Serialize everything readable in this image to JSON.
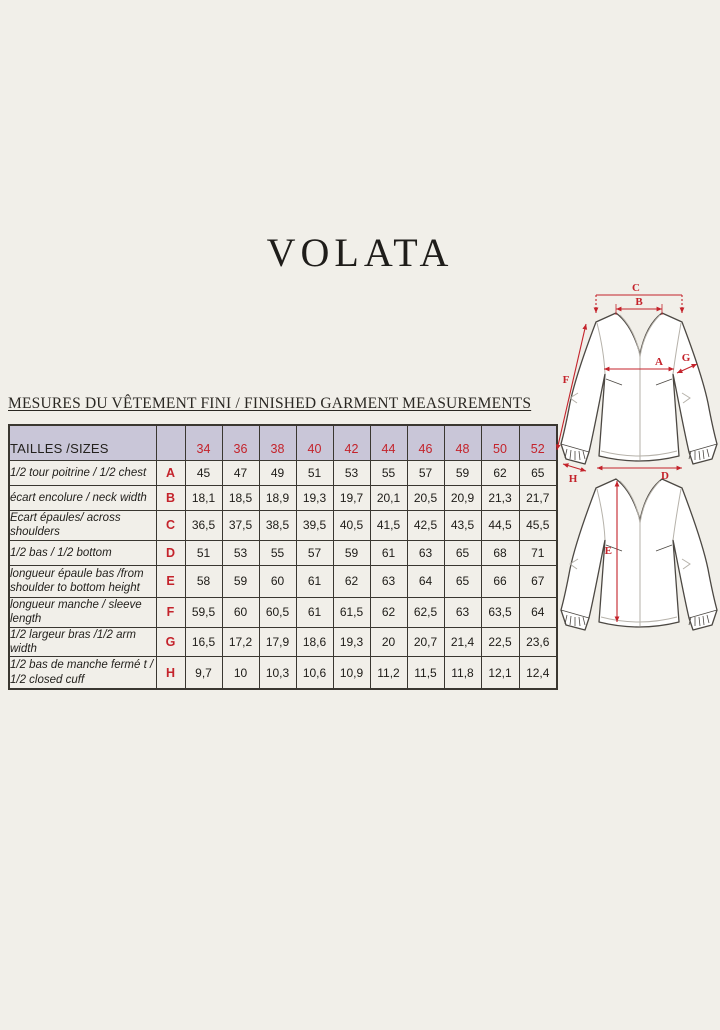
{
  "page": {
    "title": "VOLATA",
    "section_heading": "MESURES DU VÊTEMENT FINI / FINISHED GARMENT MEASUREMENTS"
  },
  "colors": {
    "background": "#f1efe9",
    "table_header_fill": "#c9c6d8",
    "accent_red": "#c4232b",
    "border": "#3a3731",
    "garment_outline": "#4c4843",
    "garment_inner_line": "#b6b2aa"
  },
  "table": {
    "corner_label": "TAILLES /SIZES",
    "sizes": [
      "34",
      "36",
      "38",
      "40",
      "42",
      "44",
      "46",
      "48",
      "50",
      "52"
    ],
    "rows": [
      {
        "label": "1/2 tour poitrine / 1/2 chest",
        "letter": "A",
        "values": [
          "45",
          "47",
          "49",
          "51",
          "53",
          "55",
          "57",
          "59",
          "62",
          "65"
        ]
      },
      {
        "label": "écart encolure  / neck width",
        "letter": "B",
        "values": [
          "18,1",
          "18,5",
          "18,9",
          "19,3",
          "19,7",
          "20,1",
          "20,5",
          "20,9",
          "21,3",
          "21,7"
        ]
      },
      {
        "label": "Ecart épaules/ across shoulders",
        "letter": "C",
        "values": [
          "36,5",
          "37,5",
          "38,5",
          "39,5",
          "40,5",
          "41,5",
          "42,5",
          "43,5",
          "44,5",
          "45,5"
        ]
      },
      {
        "label": "1/2 bas / 1/2 bottom",
        "letter": "D",
        "values": [
          "51",
          "53",
          "55",
          "57",
          "59",
          "61",
          "63",
          "65",
          "68",
          "71"
        ]
      },
      {
        "label": "longueur épaule bas  /from shoulder to bottom height",
        "letter": "E",
        "values": [
          "58",
          "59",
          "60",
          "61",
          "62",
          "63",
          "64",
          "65",
          "66",
          "67"
        ]
      },
      {
        "label": "longueur manche  / sleeve length",
        "letter": "F",
        "values": [
          "59,5",
          "60",
          "60,5",
          "61",
          "61,5",
          "62",
          "62,5",
          "63",
          "63,5",
          "64"
        ]
      },
      {
        "label": "1/2 largeur bras /1/2  arm width",
        "letter": "G",
        "values": [
          "16,5",
          "17,2",
          "17,9",
          "18,6",
          "19,3",
          "20",
          "20,7",
          "21,4",
          "22,5",
          "23,6"
        ]
      },
      {
        "label": "1/2 bas de manche fermé t / 1/2 closed cuff",
        "letter": "H",
        "values": [
          "9,7",
          "10",
          "10,3",
          "10,6",
          "10,9",
          "11,2",
          "11,5",
          "11,8",
          "12,1",
          "12,4"
        ]
      }
    ]
  },
  "diagram": {
    "labels": {
      "A": "A",
      "B": "B",
      "C": "C",
      "D": "D",
      "E": "E",
      "F": "F",
      "G": "G",
      "H": "H"
    }
  }
}
